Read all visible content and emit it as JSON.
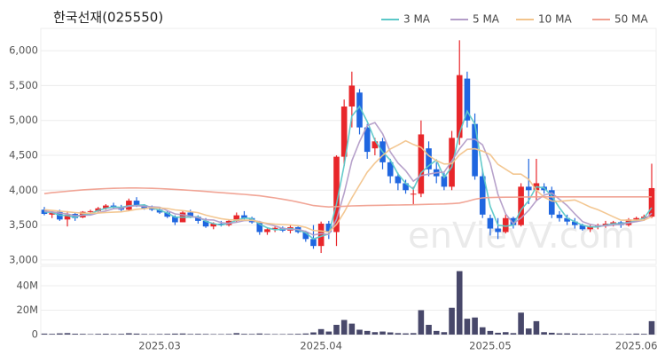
{
  "chart_data": [
    {
      "type": "candlestick",
      "title": "한국선재(025550)",
      "watermark": "enVievV.com",
      "up_color": "#e8262a",
      "down_color": "#1f66e0",
      "open": [
        3720,
        3650,
        3690,
        3580,
        3660,
        3610,
        3690,
        3700,
        3740,
        3780,
        3760,
        3720,
        3850,
        3780,
        3740,
        3720,
        3680,
        3620,
        3540,
        3680,
        3620,
        3560,
        3480,
        3520,
        3500,
        3560,
        3640,
        3600,
        3540,
        3400,
        3440,
        3460,
        3420,
        3470,
        3400,
        3300,
        3200,
        3520,
        3400,
        4480,
        5200,
        5400,
        4900,
        4600,
        4700,
        4400,
        4200,
        4100,
        3950,
        3950,
        4600,
        4300,
        4200,
        4050,
        4750,
        5600,
        4950,
        4200,
        3600,
        3450,
        3400,
        3600,
        3500,
        4050,
        4000,
        4050,
        4000,
        3650,
        3600,
        3550,
        3500,
        3440,
        3480,
        3500,
        3520,
        3540,
        3500,
        3580,
        3600,
        3620
      ],
      "high": [
        3760,
        3700,
        3720,
        3700,
        3680,
        3700,
        3720,
        3760,
        3800,
        3820,
        3790,
        3880,
        3900,
        3800,
        3780,
        3760,
        3700,
        3640,
        3700,
        3720,
        3640,
        3600,
        3540,
        3560,
        3580,
        3680,
        3700,
        3620,
        3560,
        3460,
        3480,
        3480,
        3500,
        3480,
        3420,
        3500,
        3550,
        3560,
        4500,
        5300,
        5700,
        5450,
        4950,
        4750,
        4750,
        4450,
        4250,
        4150,
        4050,
        5000,
        4700,
        4400,
        4250,
        4850,
        6150,
        5700,
        5100,
        4300,
        3650,
        3600,
        3650,
        3620,
        4100,
        4450,
        4450,
        4100,
        4050,
        3700,
        3650,
        3600,
        3520,
        3500,
        3520,
        3560,
        3560,
        3560,
        3600,
        3620,
        3650,
        4380
      ],
      "low": [
        3640,
        3600,
        3560,
        3480,
        3560,
        3600,
        3660,
        3690,
        3720,
        3740,
        3700,
        3700,
        3760,
        3720,
        3700,
        3660,
        3600,
        3500,
        3540,
        3600,
        3520,
        3460,
        3440,
        3480,
        3480,
        3540,
        3580,
        3520,
        3360,
        3360,
        3400,
        3400,
        3380,
        3380,
        3260,
        3160,
        3100,
        3300,
        3200,
        4350,
        4900,
        4800,
        4450,
        4500,
        4300,
        4100,
        4000,
        3950,
        3800,
        3900,
        4200,
        4100,
        4000,
        4000,
        4650,
        4900,
        4150,
        3600,
        3350,
        3300,
        3380,
        3450,
        3480,
        3800,
        3850,
        3950,
        3600,
        3550,
        3500,
        3450,
        3420,
        3400,
        3440,
        3460,
        3480,
        3460,
        3480,
        3540,
        3560,
        3600
      ],
      "close": [
        3660,
        3680,
        3580,
        3650,
        3600,
        3690,
        3700,
        3740,
        3780,
        3760,
        3720,
        3850,
        3780,
        3740,
        3720,
        3680,
        3620,
        3540,
        3680,
        3620,
        3560,
        3480,
        3520,
        3500,
        3560,
        3640,
        3600,
        3540,
        3400,
        3440,
        3460,
        3420,
        3470,
        3400,
        3300,
        3200,
        3520,
        3400,
        4480,
        5200,
        5500,
        4900,
        4550,
        4700,
        4400,
        4200,
        4100,
        4000,
        3950,
        4800,
        4300,
        4200,
        4050,
        4750,
        5650,
        5000,
        4200,
        3650,
        3450,
        3400,
        3600,
        3500,
        4050,
        4000,
        4100,
        4000,
        3650,
        3600,
        3550,
        3500,
        3440,
        3480,
        3500,
        3520,
        3540,
        3500,
        3580,
        3600,
        3620,
        4030
      ],
      "series": [
        {
          "name": "3 MA",
          "color": "#5cc8c8",
          "values": [
            3690,
            3680,
            3640,
            3637,
            3610,
            3647,
            3663,
            3710,
            3740,
            3760,
            3753,
            3777,
            3783,
            3790,
            3747,
            3713,
            3673,
            3613,
            3613,
            3613,
            3620,
            3553,
            3520,
            3500,
            3527,
            3567,
            3600,
            3593,
            3513,
            3460,
            3433,
            3440,
            3450,
            3430,
            3390,
            3300,
            3340,
            3373,
            3800,
            4360,
            5060,
            5200,
            4983,
            4717,
            4550,
            4433,
            4233,
            4100,
            4017,
            4250,
            4350,
            4433,
            4183,
            4333,
            4817,
            5133,
            4950,
            4283,
            3767,
            3500,
            3483,
            3500,
            3717,
            3850,
            4050,
            4033,
            3917,
            3750,
            3600,
            3550,
            3497,
            3473,
            3473,
            3500,
            3520,
            3520,
            3540,
            3560,
            3600,
            3750
          ]
        },
        {
          "name": "5 MA",
          "color": "#b39dc8",
          "values": [
            3700,
            3690,
            3670,
            3660,
            3634,
            3640,
            3644,
            3676,
            3702,
            3734,
            3740,
            3770,
            3778,
            3770,
            3762,
            3754,
            3708,
            3660,
            3648,
            3628,
            3604,
            3576,
            3572,
            3536,
            3524,
            3540,
            3564,
            3568,
            3548,
            3516,
            3488,
            3452,
            3438,
            3438,
            3410,
            3358,
            3378,
            3364,
            3580,
            3960,
            4420,
            4696,
            4926,
            4970,
            4810,
            4550,
            4390,
            4280,
            4130,
            4210,
            4230,
            4250,
            4260,
            4420,
            4590,
            4730,
            4730,
            4650,
            4390,
            3940,
            3660,
            3520,
            3600,
            3710,
            3850,
            3930,
            3960,
            3870,
            3780,
            3660,
            3550,
            3510,
            3490,
            3490,
            3500,
            3510,
            3530,
            3550,
            3570,
            3670
          ]
        },
        {
          "name": "10 MA",
          "color": "#f2c48c",
          "values": [
            3720,
            3710,
            3700,
            3690,
            3680,
            3670,
            3670,
            3672,
            3680,
            3684,
            3690,
            3706,
            3726,
            3735,
            3747,
            3746,
            3738,
            3718,
            3708,
            3694,
            3678,
            3642,
            3616,
            3592,
            3576,
            3572,
            3570,
            3570,
            3542,
            3524,
            3514,
            3508,
            3503,
            3493,
            3467,
            3423,
            3415,
            3401,
            3509,
            3685,
            3889,
            4075,
            4258,
            4388,
            4498,
            4590,
            4648,
            4708,
            4655,
            4615,
            4495,
            4425,
            4375,
            4380,
            4505,
            4585,
            4595,
            4560,
            4510,
            4370,
            4300,
            4230,
            4230,
            4155,
            4000,
            3900,
            3845,
            3840,
            3850,
            3860,
            3810,
            3760,
            3720,
            3670,
            3620,
            3570,
            3570,
            3570,
            3570,
            3620
          ]
        },
        {
          "name": "50 MA",
          "color": "#f0a090",
          "values": [
            3950,
            3965,
            3975,
            3985,
            3995,
            4005,
            4012,
            4018,
            4023,
            4027,
            4030,
            4032,
            4032,
            4030,
            4027,
            4023,
            4018,
            4012,
            4005,
            3998,
            3990,
            3982,
            3974,
            3965,
            3957,
            3948,
            3940,
            3930,
            3920,
            3905,
            3890,
            3872,
            3852,
            3830,
            3805,
            3780,
            3770,
            3760,
            3765,
            3770,
            3775,
            3778,
            3780,
            3782,
            3784,
            3786,
            3788,
            3790,
            3791,
            3795,
            3798,
            3800,
            3803,
            3808,
            3815,
            3840,
            3870,
            3890,
            3895,
            3898,
            3900,
            3900,
            3902,
            3903,
            3905,
            3905,
            3905,
            3905,
            3905,
            3905,
            3905,
            3905,
            3905,
            3905,
            3905,
            3905,
            3905,
            3905,
            3905,
            3905
          ]
        }
      ],
      "ylim": [
        2935,
        6320
      ],
      "yticks": [
        {
          "value": 3000,
          "label": "3,000"
        },
        {
          "value": 3500,
          "label": "3,500"
        },
        {
          "value": 4000,
          "label": "4,000"
        },
        {
          "value": 4500,
          "label": "4,500"
        },
        {
          "value": 5000,
          "label": "5,000"
        },
        {
          "value": 5500,
          "label": "5,500"
        },
        {
          "value": 6000,
          "label": "6,000"
        }
      ],
      "grid": true,
      "legend": "top-right"
    },
    {
      "type": "bar",
      "color": "#48486a",
      "categories": [
        null,
        null,
        null,
        null,
        null,
        null,
        null,
        null,
        null,
        null,
        null,
        null,
        null,
        null,
        null,
        "2025.03",
        null,
        null,
        null,
        null,
        null,
        null,
        null,
        null,
        null,
        null,
        null,
        null,
        null,
        null,
        null,
        null,
        null,
        null,
        null,
        null,
        "2025.04",
        null,
        null,
        null,
        null,
        null,
        null,
        null,
        null,
        null,
        null,
        null,
        null,
        null,
        null,
        null,
        null,
        null,
        null,
        null,
        null,
        null,
        "2025.05",
        null,
        null,
        null,
        null,
        null,
        null,
        null,
        null,
        null,
        null,
        null,
        null,
        null,
        null,
        null,
        null,
        null,
        null,
        "2025.06",
        null,
        null
      ],
      "values": [
        800000,
        600000,
        1000000,
        1200000,
        700000,
        600000,
        400000,
        600000,
        700000,
        500000,
        600000,
        1100000,
        800000,
        500000,
        400000,
        500000,
        600000,
        800000,
        900000,
        500000,
        600000,
        500000,
        400000,
        400000,
        500000,
        1200000,
        600000,
        500000,
        900000,
        500000,
        400000,
        400000,
        500000,
        600000,
        900000,
        1800000,
        4500000,
        2500000,
        8000000,
        12000000,
        9000000,
        4000000,
        3000000,
        2000000,
        2500000,
        1800000,
        1200000,
        1000000,
        1200000,
        20000000,
        8000000,
        3000000,
        2000000,
        22000000,
        52000000,
        13000000,
        14000000,
        6000000,
        3000000,
        1500000,
        2000000,
        1200000,
        18000000,
        5000000,
        11000000,
        2000000,
        1500000,
        1000000,
        1000000,
        800000,
        700000,
        600000,
        500000,
        600000,
        500000,
        400000,
        600000,
        800000,
        600000,
        11000000
      ],
      "ylim": [
        0,
        56000000
      ],
      "yticks": [
        0,
        {
          "value": 20000000,
          "label": "20M"
        },
        {
          "value": 40000000,
          "label": "40M"
        }
      ],
      "grid": true
    }
  ]
}
